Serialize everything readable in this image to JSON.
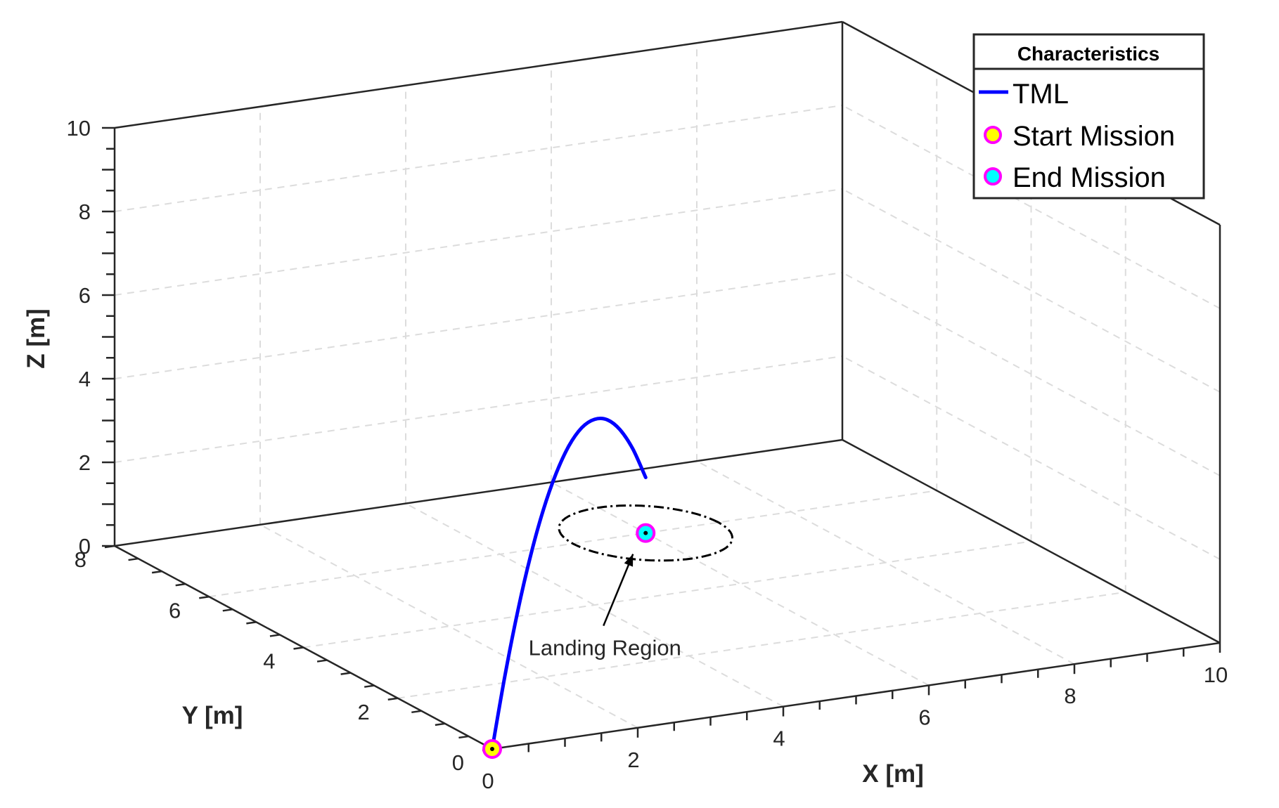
{
  "chart_data": {
    "type": "line3d",
    "title": "",
    "xlabel": "X [m]",
    "ylabel": "Y [m]",
    "zlabel": "Z [m]",
    "xlim": [
      0,
      10
    ],
    "ylim": [
      0,
      8
    ],
    "zlim": [
      0,
      10
    ],
    "x_ticks": [
      0,
      2,
      4,
      6,
      8,
      10
    ],
    "y_ticks": [
      0,
      2,
      4,
      6,
      8
    ],
    "z_ticks": [
      0,
      2,
      4,
      6,
      8,
      10
    ],
    "x_tick_labels": [
      "0",
      "2",
      "4",
      "6",
      "8",
      "10"
    ],
    "y_tick_labels": [
      "0",
      "2",
      "4",
      "6",
      "8"
    ],
    "z_tick_labels": [
      "0",
      "2",
      "4",
      "6",
      "8",
      "10"
    ],
    "grid": true,
    "legend_position": "top-right",
    "legend_title": "Characteristics",
    "series": [
      {
        "name": "TML",
        "color": "#0000ff",
        "x": [
          0,
          0.5,
          1,
          1.5,
          2,
          2.5,
          3,
          3.5,
          4,
          4.5,
          5,
          5.5,
          6
        ],
        "y": [
          0,
          0.5,
          1,
          1.5,
          2,
          2.5,
          3,
          3.5,
          4,
          4.5,
          5,
          5.5,
          6
        ],
        "z": [
          0,
          1.33,
          2.44,
          3.33,
          4.0,
          4.44,
          4.67,
          4.67,
          4.44,
          4.0,
          3.33,
          2.44,
          1.33
        ]
      }
    ],
    "markers": [
      {
        "name": "Start Mission",
        "x": 0,
        "y": 0,
        "z": 0,
        "fill": "#ffff00",
        "edge": "#ff00ff"
      },
      {
        "name": "End Mission",
        "x": 6,
        "y": 6,
        "z": 0,
        "fill": "#00ffff",
        "edge": "#ff00ff"
      }
    ],
    "annotation": {
      "text": "Landing Region",
      "center": {
        "x": 6,
        "y": 6,
        "z": 0
      },
      "radius": 1
    }
  }
}
